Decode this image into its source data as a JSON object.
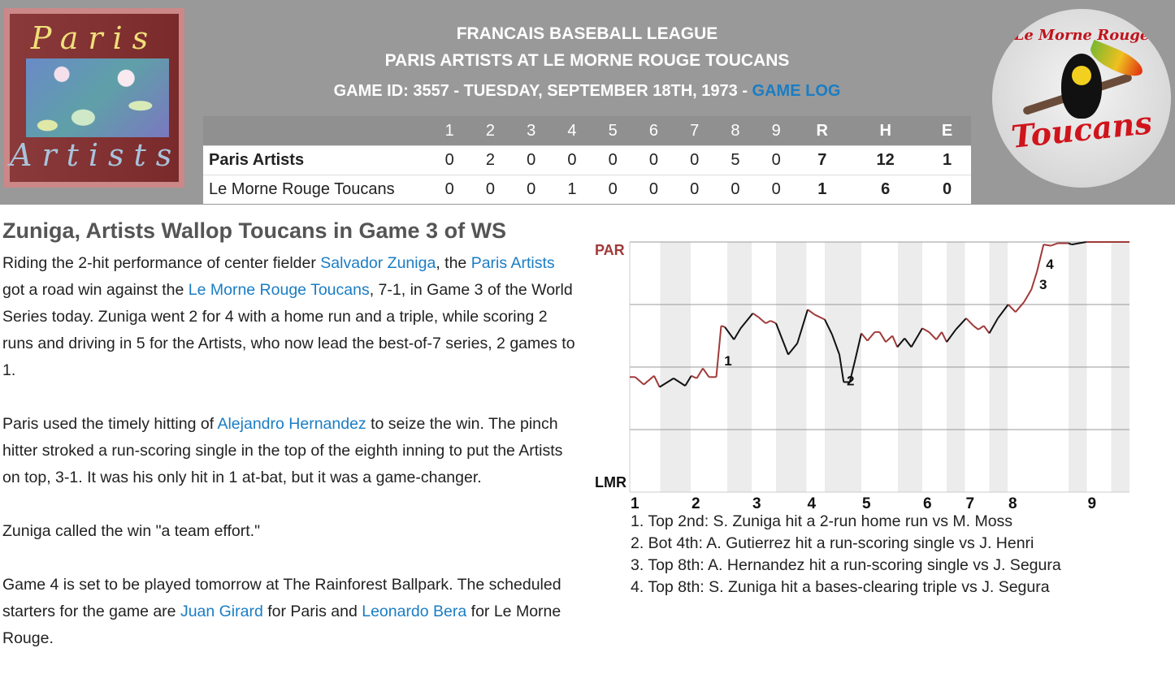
{
  "header": {
    "league": "FRANCAIS BASEBALL LEAGUE",
    "matchup": "PARIS ARTISTS AT LE MORNE ROUGE TOUCANS",
    "game_info": "GAME ID: 3557 - TUESDAY, SEPTEMBER 18TH, 1973 - ",
    "game_log_link": "GAME LOG",
    "away_logo": {
      "word1": "Paris",
      "word2": "Artists"
    },
    "home_logo": {
      "word1": "Le Morne Rouge",
      "word2": "Toucans"
    }
  },
  "scoreboard": {
    "columns": [
      "1",
      "2",
      "3",
      "4",
      "5",
      "6",
      "7",
      "8",
      "9",
      "R",
      "H",
      "E"
    ],
    "rows": [
      {
        "team": "Paris Artists",
        "innings": [
          "0",
          "2",
          "0",
          "0",
          "0",
          "0",
          "0",
          "5",
          "0"
        ],
        "R": "7",
        "H": "12",
        "E": "1"
      },
      {
        "team": "Le Morne Rouge Toucans",
        "innings": [
          "0",
          "0",
          "0",
          "1",
          "0",
          "0",
          "0",
          "0",
          "0"
        ],
        "R": "1",
        "H": "6",
        "E": "0"
      }
    ]
  },
  "article": {
    "headline": "Zuniga, Artists Wallop Toucans in Game 3 of WS",
    "p1": [
      {
        "t": "Riding the 2-hit performance of center fielder "
      },
      {
        "t": "Salvador Zuniga",
        "link": true
      },
      {
        "t": ", the "
      },
      {
        "t": "Paris Artists",
        "link": true
      },
      {
        "t": " got a road win against the "
      },
      {
        "t": "Le Morne Rouge Toucans",
        "link": true
      },
      {
        "t": ", 7-1, in Game 3 of the World Series today. Zuniga went 2 for 4 with a home run and a triple, while scoring 2 runs and driving in 5 for the Artists, who now lead the best-of-7 series, 2 games to 1."
      }
    ],
    "p2": [
      {
        "t": "Paris used the timely hitting of "
      },
      {
        "t": "Alejandro Hernandez",
        "link": true
      },
      {
        "t": " to seize the win. The pinch hitter stroked a run-scoring single in the top of the eighth inning to put the Artists on top, 3-1. It was his only hit in 1 at-bat, but it was a game-changer."
      }
    ],
    "p3": [
      {
        "t": "Zuniga called the win \"a team effort.\""
      }
    ],
    "p4": [
      {
        "t": "Game 4 is set to be played tomorrow at The Rainforest Ballpark. The scheduled starters for the game are "
      },
      {
        "t": "Juan Girard",
        "link": true
      },
      {
        "t": " for Paris and "
      },
      {
        "t": "Leonardo Bera",
        "link": true
      },
      {
        "t": " for Le Morne Rouge."
      }
    ]
  },
  "chart_data": {
    "type": "line",
    "top_label": "PAR",
    "bottom_label": "LMR",
    "ylim": [
      -1,
      1
    ],
    "xlim": [
      0,
      82
    ],
    "gridlines_y": [
      1,
      0.5,
      0,
      -0.5
    ],
    "colors": {
      "away": "#a03a3a",
      "home": "#111111",
      "band": "#ececec",
      "grid": "#999999"
    },
    "inning_ticks": [
      {
        "label": "1",
        "x": 0
      },
      {
        "label": "2",
        "x": 10
      },
      {
        "label": "3",
        "x": 20
      },
      {
        "label": "4",
        "x": 29
      },
      {
        "label": "5",
        "x": 38
      },
      {
        "label": "6",
        "x": 48
      },
      {
        "label": "7",
        "x": 55
      },
      {
        "label": "8",
        "x": 62
      },
      {
        "label": "9",
        "x": 75
      }
    ],
    "bottom_half_bands": [
      [
        5,
        10
      ],
      [
        16,
        20
      ],
      [
        24,
        29
      ],
      [
        32,
        38
      ],
      [
        44,
        48
      ],
      [
        52,
        55
      ],
      [
        59,
        62
      ],
      [
        72,
        75
      ],
      [
        79,
        82
      ]
    ],
    "points": [
      [
        0,
        -0.08
      ],
      [
        0.9,
        -0.08
      ],
      [
        2.3,
        -0.14
      ],
      [
        4,
        -0.07
      ],
      [
        4.9,
        -0.16
      ],
      [
        7.2,
        -0.09
      ],
      [
        9.1,
        -0.15
      ],
      [
        10.1,
        -0.07
      ],
      [
        11,
        -0.09
      ],
      [
        12,
        -0.01
      ],
      [
        13,
        -0.08
      ],
      [
        14.2,
        -0.08
      ],
      [
        15,
        0.33
      ],
      [
        15.6,
        0.32
      ],
      [
        17.1,
        0.22
      ],
      [
        18.2,
        0.31
      ],
      [
        20.2,
        0.43
      ],
      [
        21.1,
        0.4
      ],
      [
        22.3,
        0.35
      ],
      [
        23.1,
        0.37
      ],
      [
        24,
        0.35
      ],
      [
        26,
        0.1
      ],
      [
        27.5,
        0.19
      ],
      [
        29.2,
        0.46
      ],
      [
        30.3,
        0.42
      ],
      [
        32,
        0.38
      ],
      [
        33.2,
        0.26
      ],
      [
        34.4,
        0.1
      ],
      [
        35.1,
        -0.12
      ],
      [
        36.1,
        -0.12
      ],
      [
        37,
        0.06
      ],
      [
        38,
        0.27
      ],
      [
        39,
        0.21
      ],
      [
        40.2,
        0.28
      ],
      [
        41,
        0.28
      ],
      [
        42,
        0.2
      ],
      [
        43.1,
        0.25
      ],
      [
        43.9,
        0.16
      ],
      [
        45.1,
        0.23
      ],
      [
        46.2,
        0.16
      ],
      [
        48,
        0.31
      ],
      [
        49.1,
        0.28
      ],
      [
        50.3,
        0.22
      ],
      [
        51.2,
        0.28
      ],
      [
        52,
        0.2
      ],
      [
        53.5,
        0.3
      ],
      [
        55.2,
        0.39
      ],
      [
        56.4,
        0.33
      ],
      [
        57.2,
        0.3
      ],
      [
        58.1,
        0.33
      ],
      [
        59,
        0.27
      ],
      [
        60.4,
        0.39
      ],
      [
        62.1,
        0.5
      ],
      [
        63.3,
        0.44
      ],
      [
        64.7,
        0.52
      ],
      [
        65.9,
        0.62
      ],
      [
        66.8,
        0.76
      ],
      [
        67.9,
        0.98
      ],
      [
        69.1,
        0.97
      ],
      [
        70.2,
        0.99
      ],
      [
        72,
        0.99
      ],
      [
        72.5,
        0.98
      ],
      [
        74.9,
        1
      ],
      [
        82,
        1
      ]
    ],
    "annotations": [
      {
        "label": "1",
        "x": 15.5,
        "y": 0.06
      },
      {
        "label": "2",
        "x": 35.6,
        "y": -0.1
      },
      {
        "label": "3",
        "x": 67.2,
        "y": 0.67
      },
      {
        "label": "4",
        "x": 68.3,
        "y": 0.83
      }
    ],
    "notes": [
      "1. Top 2nd: S. Zuniga hit a 2-run home run vs M. Moss",
      "2. Bot 4th: A. Gutierrez hit a run-scoring single vs J. Henri",
      "3. Top 8th: A. Hernandez hit a run-scoring single vs J. Segura",
      "4. Top 8th: S. Zuniga hit a bases-clearing triple vs J. Segura"
    ]
  }
}
